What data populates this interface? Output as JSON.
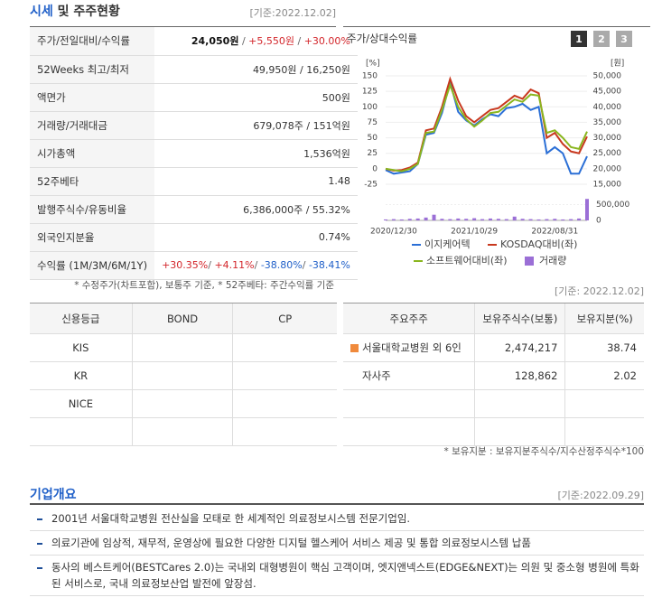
{
  "header": {
    "title_main": "시세",
    "title_rest": "및 주주현황",
    "date": "[기준:2022.12.02]"
  },
  "quote_table": {
    "rows": [
      {
        "label": "주가/전일대비/수익률",
        "parts": [
          {
            "text": "24,050원",
            "bold": true
          },
          {
            "text": " / ",
            "color": "#666666"
          },
          {
            "text": "+5,550원",
            "color": "#d3262b"
          },
          {
            "text": " / ",
            "color": "#666666"
          },
          {
            "text": "+30.00%",
            "color": "#d3262b"
          }
        ]
      },
      {
        "label": "52Weeks 최고/최저",
        "parts": [
          {
            "text": "49,950원 / 16,250원"
          }
        ]
      },
      {
        "label": "액면가",
        "parts": [
          {
            "text": "500원"
          }
        ]
      },
      {
        "label": "거래량/거래대금",
        "parts": [
          {
            "text": "679,078주 / 151억원"
          }
        ]
      },
      {
        "label": "시가총액",
        "parts": [
          {
            "text": "1,536억원"
          }
        ]
      },
      {
        "label": "52주베타",
        "parts": [
          {
            "text": "1.48"
          }
        ]
      },
      {
        "label": "발행주식수/유동비율",
        "parts": [
          {
            "text": "6,386,000주 / 55.32%"
          }
        ]
      },
      {
        "label": "외국인지분율",
        "parts": [
          {
            "text": "0.74%"
          }
        ]
      },
      {
        "label": "수익률 (1M/3M/6M/1Y)",
        "parts": [
          {
            "text": "+30.35%",
            "color": "#d3262b"
          },
          {
            "text": "/ ",
            "color": "#666666"
          },
          {
            "text": "+4.11%",
            "color": "#d3262b"
          },
          {
            "text": "/ ",
            "color": "#666666"
          },
          {
            "text": "-38.80%",
            "color": "#1f5fc8"
          },
          {
            "text": "/ ",
            "color": "#666666"
          },
          {
            "text": "-38.41%",
            "color": "#1f5fc8"
          }
        ]
      }
    ],
    "note": "* 수정주가(차트포함), 보통주 기준, * 52주베타: 주간수익률 기준"
  },
  "chart_data": {
    "type": "line",
    "title": "주가/상대수익률",
    "tabs": [
      "1",
      "2",
      "3"
    ],
    "categories": [
      null,
      "2020/12/30",
      null,
      null,
      null,
      null,
      null,
      null,
      null,
      null,
      null,
      "2021/10/29",
      null,
      null,
      null,
      null,
      null,
      null,
      null,
      null,
      null,
      "2022/08/31",
      null,
      null,
      null,
      null
    ],
    "series": [
      {
        "name": "이지케어텍",
        "color": "#2b6fd6",
        "values": [
          -2,
          -8,
          -6,
          -4,
          8,
          55,
          58,
          90,
          140,
          92,
          78,
          70,
          80,
          88,
          85,
          98,
          100,
          105,
          95,
          100,
          25,
          35,
          25,
          -8,
          -8,
          20
        ]
      },
      {
        "name": "KOSDAQ대비(좌)",
        "color": "#c8381e",
        "values": [
          0,
          -3,
          -2,
          2,
          10,
          62,
          65,
          100,
          145,
          110,
          85,
          75,
          85,
          95,
          98,
          108,
          118,
          113,
          128,
          122,
          50,
          58,
          40,
          28,
          25,
          52
        ]
      },
      {
        "name": "소프트웨어대비(좌)",
        "color": "#8ab61f",
        "values": [
          0,
          -2,
          -4,
          0,
          8,
          58,
          60,
          95,
          135,
          100,
          80,
          68,
          78,
          90,
          92,
          102,
          112,
          108,
          120,
          118,
          58,
          62,
          50,
          35,
          32,
          60
        ]
      }
    ],
    "y_unit": "[%]",
    "ylim": [
      -25,
      150
    ],
    "yticks": [
      150,
      125,
      100,
      75,
      50,
      25,
      0,
      -25
    ],
    "y2_unit": "[원]",
    "y2lim": [
      15000,
      50000
    ],
    "y2ticks": [
      {
        "value": 50000,
        "label": "50,000"
      },
      {
        "value": 45000,
        "label": "45,000"
      },
      {
        "value": 40000,
        "label": "40,000"
      },
      {
        "value": 35000,
        "label": "35,000"
      },
      {
        "value": 30000,
        "label": "30,000"
      },
      {
        "value": 25000,
        "label": "25,000"
      },
      {
        "value": 20000,
        "label": "20,000"
      },
      {
        "value": 15000,
        "label": "15,000"
      }
    ],
    "volume": {
      "name": "거래량",
      "color": "#9b6fd6",
      "values": [
        30000,
        40000,
        30000,
        50000,
        60000,
        90000,
        180000,
        50000,
        40000,
        60000,
        50000,
        70000,
        40000,
        60000,
        50000,
        40000,
        120000,
        50000,
        40000,
        30000,
        40000,
        50000,
        30000,
        40000,
        60000,
        679078
      ],
      "ylim": [
        0,
        800000
      ],
      "ticks": [
        {
          "value": 500000,
          "label": "500,000"
        },
        0
      ]
    }
  },
  "credit_table": {
    "date": "[기준: 2022.12.02]",
    "header": [
      "신용등급",
      "BOND",
      "CP"
    ],
    "rows": [
      [
        "KIS"
      ],
      [
        "KR"
      ],
      [
        "NICE"
      ]
    ]
  },
  "holder_table": {
    "header": [
      "주요주주",
      "보유주식수(보통)",
      "보유지분(%)"
    ],
    "rows": [
      [
        "서울대학교병원 외 6인",
        "2,474,217",
        "38.74"
      ],
      [
        "자사주",
        "128,862",
        "2.02"
      ]
    ],
    "note": "* 보유지분 : 보유지분주식수/지수산정주식수*100"
  },
  "company": {
    "title": "기업개요",
    "date": "[기준:2022.09.29]",
    "items": [
      "2001년 서울대학교병원 전산실을 모태로 한 세계적인 의료정보시스템 전문기업임.",
      "의료기관에 임상적, 재무적, 운영상에 필요한 다양한 디지털 헬스케어 서비스 제공 및 통합 의료정보시스템 납품",
      "동사의 베스트케어(BESTCares 2.0)는 국내외 대형병원이 핵심 고객이며, 엣지앤넥스트(EDGE&NEXT)는 의원 및 중소형 병원에 특화된 서비스로, 국내 의료정보산업 발전에 앞장섬."
    ]
  }
}
